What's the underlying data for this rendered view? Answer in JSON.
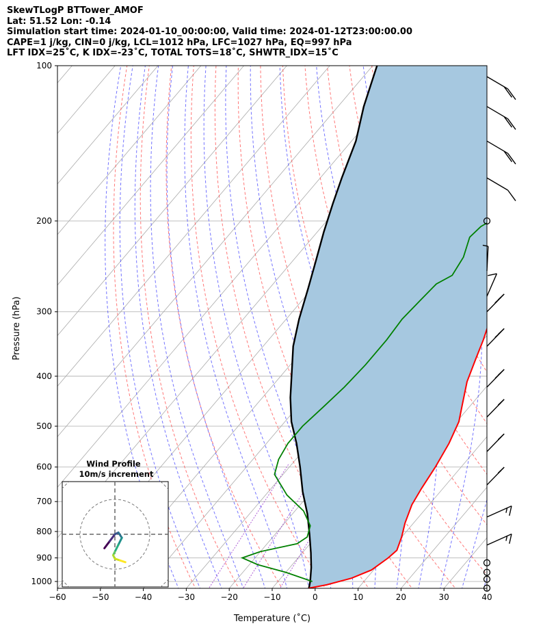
{
  "header": {
    "line1": "SkewTLogP BTTower_AMOF",
    "line2": "Lat: 51.52   Lon: -0.14",
    "line3": "Simulation start time: 2024-01-10_00:00:00, Valid time: 2024-01-12T23:00:00.00",
    "line4": "CAPE=1 j/kg, CIN=0 j/kg, LCL=1012 hPa, LFC=1027 hPa, EQ=997 hPa",
    "line5": "LFT IDX=25˚C, K IDX=-23˚C, TOTAL TOTS=18˚C, SHWTR_IDX=15˚C"
  },
  "chart_data": {
    "type": "line",
    "xlabel": "Temperature (˚C)",
    "ylabel": "Pressure (hPa)",
    "xlim": [
      -60,
      40
    ],
    "ylim": [
      1050,
      100
    ],
    "y_scale": "log",
    "skew": true,
    "grid": true,
    "x_ticks": [
      -60,
      -50,
      -40,
      -30,
      -20,
      -10,
      0,
      10,
      20,
      30,
      40
    ],
    "y_ticks": [
      100,
      200,
      300,
      400,
      500,
      600,
      700,
      800,
      900,
      1000
    ],
    "colors": {
      "temperature": "#ff0000",
      "dewpoint": "#008000",
      "parcel": "#000000",
      "fill": "#a6c8e0",
      "dry_adiabat": "#ff5555",
      "moist_adiabat": "#4444ff",
      "isotherm": "#aaaaaa",
      "mixing_ratio": "#9933cc"
    },
    "series": [
      {
        "key": "temperature",
        "points": [
          [
            -1.5,
            1030
          ],
          [
            2,
            1015
          ],
          [
            6.5,
            985
          ],
          [
            9.5,
            950
          ],
          [
            11,
            900
          ],
          [
            11.5,
            870
          ],
          [
            10,
            820
          ],
          [
            8,
            770
          ],
          [
            6,
            710
          ],
          [
            5,
            660
          ],
          [
            4,
            600
          ],
          [
            2.5,
            540
          ],
          [
            0.5,
            490
          ],
          [
            -2,
            455
          ],
          [
            -5.5,
            410
          ],
          [
            -8,
            370
          ],
          [
            -10,
            340
          ],
          [
            -12.5,
            310
          ],
          [
            -14.5,
            285
          ],
          [
            -16,
            265
          ],
          [
            -17.5,
            245
          ],
          [
            -19,
            230
          ],
          [
            -20.5,
            215
          ],
          [
            -21.5,
            200
          ],
          [
            -21.8,
            190
          ],
          [
            -20.8,
            182
          ],
          [
            -18.5,
            172
          ],
          [
            -15.5,
            165
          ],
          [
            -11.5,
            157
          ],
          [
            -7,
            145
          ],
          [
            -2,
            132
          ],
          [
            1.5,
            121
          ],
          [
            5,
            108
          ],
          [
            7,
            100
          ]
        ]
      },
      {
        "key": "dewpoint",
        "points": [
          [
            -2,
            1000
          ],
          [
            -10,
            960
          ],
          [
            -18,
            928
          ],
          [
            -23,
            900
          ],
          [
            -20,
            875
          ],
          [
            -13,
            845
          ],
          [
            -12,
            820
          ],
          [
            -13.5,
            780
          ],
          [
            -18,
            730
          ],
          [
            -25,
            680
          ],
          [
            -32,
            620
          ],
          [
            -34,
            580
          ],
          [
            -35,
            540
          ],
          [
            -35,
            500
          ],
          [
            -34,
            460
          ],
          [
            -33,
            420
          ],
          [
            -32.5,
            380
          ],
          [
            -32.5,
            340
          ],
          [
            -33,
            310
          ],
          [
            -32.5,
            285
          ],
          [
            -32,
            265
          ],
          [
            -30,
            255
          ],
          [
            -31,
            235
          ],
          [
            -33.5,
            215
          ],
          [
            -33,
            205
          ],
          [
            -29.5,
            190
          ],
          [
            -28,
            180
          ],
          [
            -26,
            175
          ],
          [
            -23.5,
            160
          ],
          [
            -21.5,
            150
          ],
          [
            -20.5,
            140
          ],
          [
            -19,
            130
          ],
          [
            -16,
            120
          ],
          [
            -12,
            110
          ],
          [
            -8,
            100
          ]
        ]
      },
      {
        "key": "parcel",
        "points": [
          [
            -1.5,
            1030
          ],
          [
            -2.5,
            1000
          ],
          [
            -5,
            940
          ],
          [
            -8,
            880
          ],
          [
            -12,
            810
          ],
          [
            -16.5,
            740
          ],
          [
            -22,
            670
          ],
          [
            -27.5,
            600
          ],
          [
            -33,
            540
          ],
          [
            -38.5,
            490
          ],
          [
            -43.5,
            440
          ],
          [
            -48.5,
            390
          ],
          [
            -53,
            350
          ],
          [
            -57,
            310
          ],
          [
            -61,
            270
          ],
          [
            -64.5,
            240
          ],
          [
            -68.5,
            210
          ],
          [
            -72,
            185
          ],
          [
            -75,
            165
          ],
          [
            -79,
            140
          ],
          [
            -84,
            120
          ],
          [
            -89,
            100
          ]
        ]
      }
    ],
    "wind_barbs": [
      {
        "p": 1030,
        "calm": true
      },
      {
        "p": 990,
        "calm": true
      },
      {
        "p": 960,
        "calm": true
      },
      {
        "p": 920,
        "calm": true
      },
      {
        "p": 850,
        "spd": 15,
        "dir": "w"
      },
      {
        "p": 750,
        "spd": 15,
        "dir": "w"
      },
      {
        "p": 650,
        "spd": 15,
        "dir": "sw"
      },
      {
        "p": 560,
        "spd": 15,
        "dir": "sw"
      },
      {
        "p": 480,
        "spd": 15,
        "dir": "sw"
      },
      {
        "p": 420,
        "spd": 20,
        "dir": "sw"
      },
      {
        "p": 350,
        "spd": 25,
        "dir": "sw"
      },
      {
        "p": 300,
        "spd": 25,
        "dir": "sw"
      },
      {
        "p": 280,
        "spd": 10,
        "dir": "ssw"
      },
      {
        "p": 250,
        "spd": 5,
        "dir": "s"
      },
      {
        "p": 200,
        "calm": true
      },
      {
        "p": 165,
        "spd": 10,
        "dir": "nw"
      },
      {
        "p": 140,
        "spd": 20,
        "dir": "nw"
      },
      {
        "p": 120,
        "spd": 20,
        "dir": "nw"
      },
      {
        "p": 105,
        "spd": 20,
        "dir": "nw"
      }
    ]
  },
  "hodograph": {
    "title": "Wind Profile",
    "subtitle": "10m/s increment",
    "path": [
      [
        -3,
        -4
      ],
      [
        -1.5,
        -2
      ],
      [
        0,
        0
      ],
      [
        1,
        0.5
      ],
      [
        2,
        -1
      ],
      [
        1,
        -3
      ],
      [
        0,
        -5
      ],
      [
        -0.5,
        -6
      ],
      [
        0,
        -7
      ],
      [
        1.5,
        -7.5
      ],
      [
        3,
        -8
      ]
    ]
  }
}
